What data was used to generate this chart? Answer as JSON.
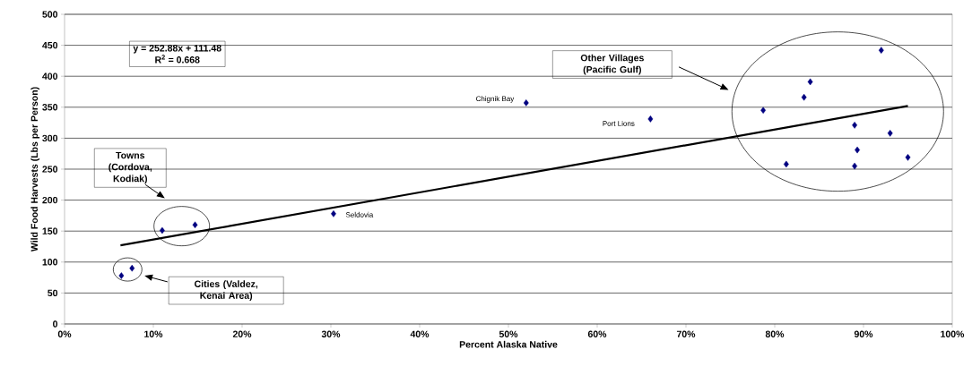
{
  "chart_data": {
    "type": "scatter",
    "xlabel": "Percent Alaska Native",
    "ylabel": "Wild Food Harvests (Lbs per Person)",
    "series": [
      {
        "color": "#000080",
        "marker": "diamond",
        "x": [
          6.4,
          7.6,
          11.0,
          14.7,
          30.3,
          52.0,
          66.0,
          78.7,
          81.3,
          83.3,
          84.0,
          89.0,
          89.3,
          89.0,
          92.0,
          93.0,
          95.0
        ],
        "values": [
          78,
          90,
          151,
          160,
          178,
          357,
          331,
          345,
          258,
          366,
          391,
          321,
          281,
          255,
          442,
          308,
          269
        ]
      },
      {
        "type": "line",
        "color": "#000000",
        "marker": "none",
        "x": [
          6.3,
          95.0
        ],
        "values": [
          127,
          352
        ]
      }
    ],
    "xlim": [
      0,
      100
    ],
    "ylim": [
      0,
      500
    ],
    "xticks": [
      {
        "value": 0,
        "label": "0%"
      },
      {
        "value": 10,
        "label": "10%"
      },
      {
        "value": 20,
        "label": "20%"
      },
      {
        "value": 30,
        "label": "30%"
      },
      {
        "value": 40,
        "label": "40%"
      },
      {
        "value": 50,
        "label": "50%"
      },
      {
        "value": 60,
        "label": "60%"
      },
      {
        "value": 70,
        "label": "70%"
      },
      {
        "value": 80,
        "label": "80%"
      },
      {
        "value": 90,
        "label": "90%"
      },
      {
        "value": 100,
        "label": "100%"
      }
    ],
    "yticks": [
      0,
      50,
      100,
      150,
      200,
      250,
      300,
      350,
      400,
      450,
      500
    ],
    "grid": "y",
    "annotations": [
      "y = 252.88x + 111.48",
      "R$^{2}$ = 0.668",
      "Towns (Cordova, Kodiak)",
      "Cities (Valdez, Kenai Area)",
      "Other Villages (Pacific Gulf)",
      {
        "text": "Chignik Bay",
        "x": 52.0,
        "y": 357
      },
      {
        "text": "Port Lions",
        "x": 66.0,
        "y": 331
      },
      {
        "text": "Seldovia",
        "x": 30.3,
        "y": 178
      }
    ]
  }
}
